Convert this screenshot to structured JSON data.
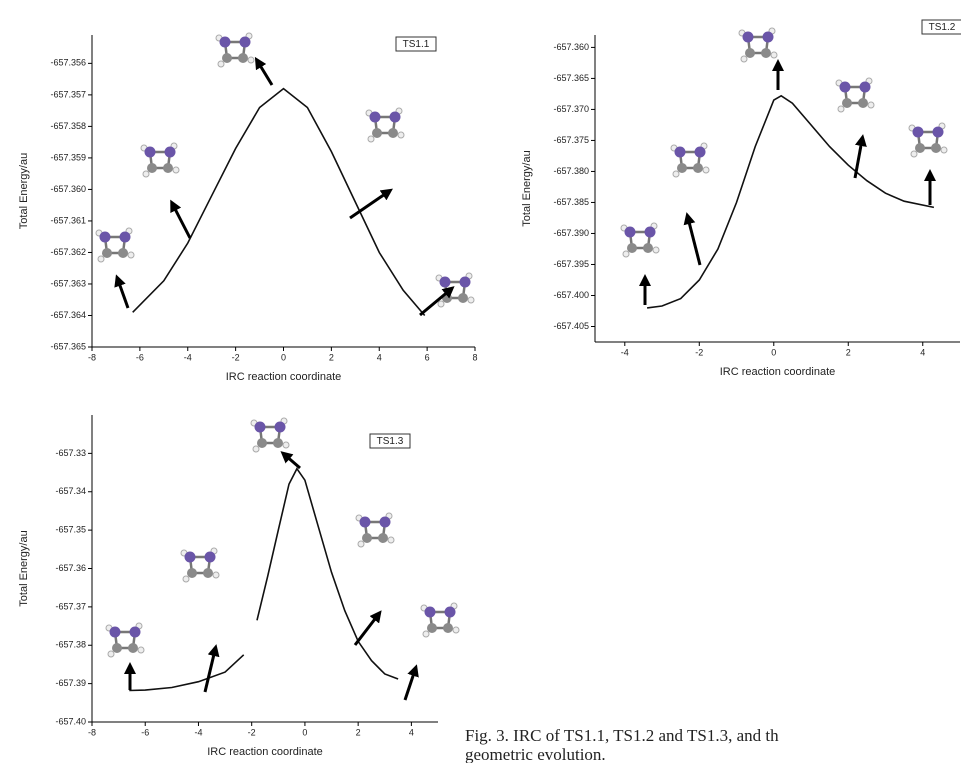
{
  "chart_data": [
    {
      "type": "line",
      "label_box": "TS1.1",
      "ylabel": "Total Energy/au",
      "xlabel": "IRC reaction coordinate",
      "color": "#111111",
      "x": [
        -6.3,
        -5,
        -4,
        -3,
        -2,
        -1,
        0,
        1,
        2,
        3,
        4,
        5,
        5.9
      ],
      "values": [
        -657.3639,
        -657.3629,
        -657.3617,
        -657.3602,
        -657.3587,
        -657.3574,
        -657.3568,
        -657.3574,
        -657.3588,
        -657.3604,
        -657.362,
        -657.3632,
        -657.364
      ],
      "xlim": [
        -8,
        8
      ],
      "xticks": [
        -8,
        -6,
        -4,
        -2,
        0,
        2,
        4,
        6,
        8
      ],
      "ylim": [
        -657.365,
        -657.3551
      ],
      "yticks": [
        -657.356,
        -657.357,
        -657.358,
        -657.359,
        {
          "value": -657.36,
          "label": "-657.360"
        },
        -657.361,
        -657.362,
        -657.363,
        -657.364,
        -657.365
      ]
    },
    {
      "type": "line",
      "label_box": "TS1.2",
      "ylabel": "Total Energy/au",
      "xlabel": "IRC reaction coordinate",
      "color": "#111111",
      "x": [
        -3.4,
        -3,
        -2.5,
        -2,
        -1.5,
        -1,
        -0.5,
        0,
        0.2,
        0.5,
        1,
        1.5,
        2,
        2.5,
        3,
        3.5,
        4.3
      ],
      "values": [
        -657.402,
        -657.4017,
        -657.4005,
        -657.3975,
        -657.3925,
        -657.385,
        -657.376,
        -657.3685,
        -657.3678,
        -657.369,
        -657.3725,
        -657.376,
        -657.379,
        -657.3815,
        -657.3835,
        -657.3848,
        -657.3858
      ],
      "xlim": [
        -4.8,
        5.0
      ],
      "xticks": [
        -4,
        -2,
        0,
        2,
        4
      ],
      "ylim": [
        -657.4075,
        -657.358
      ],
      "yticks": [
        {
          "value": -657.36,
          "label": "-657.360"
        },
        -657.365,
        {
          "value": -657.37,
          "label": "-657.370"
        },
        -657.375,
        {
          "value": -657.38,
          "label": "-657.380"
        },
        -657.385,
        {
          "value": -657.39,
          "label": "-657.390"
        },
        -657.395,
        {
          "value": -657.4,
          "label": "-657.400"
        },
        -657.405
      ]
    },
    {
      "type": "line",
      "label_box": "TS1.3",
      "ylabel": "Total Energy/au",
      "xlabel": "IRC reaction coordinate",
      "color": "#111111",
      "x": [
        -6.6,
        -6,
        -5,
        -4,
        -3,
        -2.3,
        -2,
        -1.8,
        -1.4,
        -1,
        -0.6,
        -0.3,
        0,
        0.5,
        1,
        1.5,
        2,
        2.5,
        3,
        3.5
      ],
      "values": [
        -657.3918,
        -657.3917,
        -657.391,
        -657.3895,
        -657.387,
        -657.3825,
        null,
        -657.3735,
        -657.362,
        -657.35,
        -657.338,
        -657.334,
        -657.337,
        -657.349,
        -657.361,
        -657.371,
        -657.379,
        -657.384,
        -657.3875,
        -657.3888
      ],
      "xlim": [
        -8,
        5
      ],
      "xticks": [
        -8,
        -6,
        -4,
        -2,
        0,
        2,
        4
      ],
      "ylim": [
        -657.4,
        -657.32
      ],
      "yticks": [
        -657.33,
        -657.34,
        -657.35,
        -657.36,
        -657.37,
        -657.38,
        -657.39,
        {
          "value": -657.4,
          "label": "-657.40"
        }
      ]
    }
  ],
  "caption": [
    "Fig. 3. IRC of TS1.1, TS1.2 and TS1.3, and th",
    "geometric evolution."
  ]
}
